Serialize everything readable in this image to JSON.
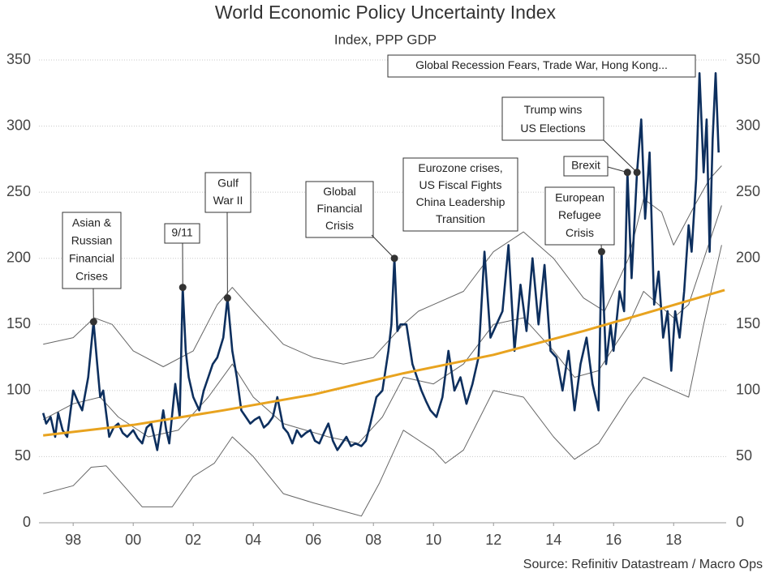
{
  "chart_data": {
    "type": "line",
    "title": "World Economic Policy Uncertainty Index",
    "subtitle": "Index, PPP GDP",
    "source": "Source: Refinitiv Datastream / Macro Ops",
    "xlim": [
      1996.86,
      2019.75
    ],
    "xticks": [
      {
        "value": 1998,
        "label": "98"
      },
      {
        "value": 2000,
        "label": "00"
      },
      {
        "value": 2002,
        "label": "02"
      },
      {
        "value": 2004,
        "label": "04"
      },
      {
        "value": 2006,
        "label": "06"
      },
      {
        "value": 2008,
        "label": "08"
      },
      {
        "value": 2010,
        "label": "10"
      },
      {
        "value": 2012,
        "label": "12"
      },
      {
        "value": 2014,
        "label": "14"
      },
      {
        "value": 2016,
        "label": "16"
      },
      {
        "value": 2018,
        "label": "18"
      }
    ],
    "ylim": [
      0,
      350
    ],
    "yticks": [
      0,
      50,
      100,
      150,
      200,
      250,
      300,
      350
    ],
    "grid": true,
    "series": [
      {
        "color": "#666666",
        "width": 1,
        "x": [
          1997,
          1998,
          1998.6,
          1999.1,
          1999.8,
          2000.3,
          2001.3,
          2002,
          2002.7,
          2003.3,
          2004,
          2005,
          2006,
          2007.6,
          2008.2,
          2009,
          2010,
          2010.4,
          2011,
          2012,
          2013,
          2014,
          2014.7,
          2015.5,
          2016.5,
          2017,
          2018,
          2018.5,
          2019,
          2019.6
        ],
        "values": [
          22,
          28,
          42,
          43,
          25,
          12,
          12,
          35,
          45,
          65,
          50,
          22,
          15,
          5,
          30,
          70,
          55,
          45,
          55,
          100,
          95,
          65,
          48,
          60,
          95,
          110,
          100,
          95,
          150,
          210
        ]
      },
      {
        "color": "#666666",
        "width": 1,
        "x": [
          1997,
          1998,
          1998.9,
          1999.5,
          2000.5,
          2001.5,
          2002.5,
          2003.3,
          2004,
          2005,
          2006.5,
          2007.5,
          2008.3,
          2009,
          2010,
          2011,
          2012,
          2013,
          2014,
          2014.7,
          2015.5,
          2016.5,
          2017,
          2018,
          2018.5,
          2019.6
        ],
        "values": [
          78,
          90,
          95,
          80,
          65,
          70,
          95,
          120,
          95,
          75,
          65,
          60,
          80,
          110,
          105,
          120,
          150,
          155,
          130,
          110,
          115,
          150,
          175,
          155,
          165,
          240
        ]
      },
      {
        "color": "#666666",
        "width": 1,
        "x": [
          1997,
          1998,
          1998.7,
          1999.3,
          2000,
          2001,
          2002,
          2002.8,
          2003.3,
          2004,
          2005,
          2006,
          2007,
          2008,
          2009,
          2009.5,
          2010,
          2011,
          2012,
          2013,
          2014,
          2015,
          2015.7,
          2016.5,
          2017,
          2017.6,
          2018,
          2018.7,
          2019.2,
          2019.6
        ],
        "values": [
          135,
          140,
          155,
          150,
          130,
          118,
          130,
          165,
          178,
          160,
          135,
          125,
          120,
          125,
          150,
          160,
          165,
          175,
          205,
          220,
          200,
          170,
          160,
          200,
          245,
          235,
          210,
          240,
          260,
          270
        ]
      },
      {
        "color": "#0d2f5e",
        "width": 2.6,
        "x": [
          1997,
          1997.1,
          1997.25,
          1997.4,
          1997.5,
          1997.65,
          1997.8,
          1998,
          1998.15,
          1998.3,
          1998.5,
          1998.68,
          1998.8,
          1998.9,
          1999,
          1999.2,
          1999.35,
          1999.5,
          1999.65,
          1999.8,
          2000,
          2000.15,
          2000.3,
          2000.45,
          2000.6,
          2000.8,
          2001,
          2001.1,
          2001.2,
          2001.4,
          2001.55,
          2001.65,
          2001.75,
          2001.85,
          2002,
          2002.2,
          2002.35,
          2002.5,
          2002.65,
          2002.8,
          2003,
          2003.14,
          2003.3,
          2003.45,
          2003.6,
          2003.75,
          2003.9,
          2004.05,
          2004.2,
          2004.35,
          2004.5,
          2004.65,
          2004.8,
          2005,
          2005.15,
          2005.3,
          2005.45,
          2005.6,
          2005.75,
          2005.9,
          2006.05,
          2006.2,
          2006.35,
          2006.5,
          2006.65,
          2006.8,
          2006.95,
          2007.1,
          2007.25,
          2007.4,
          2007.6,
          2007.75,
          2007.9,
          2008.1,
          2008.3,
          2008.5,
          2008.6,
          2008.7,
          2008.8,
          2008.9,
          2009.1,
          2009.3,
          2009.45,
          2009.6,
          2009.75,
          2009.9,
          2010.1,
          2010.3,
          2010.5,
          2010.7,
          2010.9,
          2011.1,
          2011.3,
          2011.5,
          2011.7,
          2011.9,
          2012.1,
          2012.3,
          2012.5,
          2012.7,
          2012.9,
          2013.1,
          2013.3,
          2013.5,
          2013.7,
          2013.9,
          2014.1,
          2014.3,
          2014.5,
          2014.7,
          2014.9,
          2015.1,
          2015.3,
          2015.5,
          2015.6,
          2015.75,
          2015.9,
          2016,
          2016.2,
          2016.35,
          2016.46,
          2016.6,
          2016.78,
          2016.92,
          2017.05,
          2017.2,
          2017.35,
          2017.5,
          2017.65,
          2017.8,
          2017.92,
          2018.05,
          2018.2,
          2018.35,
          2018.5,
          2018.6,
          2018.75,
          2018.86,
          2019,
          2019.1,
          2019.2,
          2019.3,
          2019.4,
          2019.5
        ],
        "values": [
          83,
          75,
          80,
          65,
          83,
          70,
          65,
          100,
          92,
          85,
          110,
          152,
          120,
          95,
          100,
          65,
          72,
          75,
          68,
          65,
          70,
          64,
          60,
          72,
          75,
          55,
          85,
          70,
          60,
          105,
          80,
          178,
          130,
          110,
          95,
          85,
          100,
          110,
          120,
          125,
          140,
          170,
          130,
          110,
          85,
          80,
          75,
          78,
          80,
          72,
          75,
          80,
          95,
          72,
          68,
          60,
          70,
          65,
          68,
          70,
          62,
          60,
          68,
          75,
          62,
          55,
          60,
          65,
          58,
          60,
          58,
          62,
          75,
          95,
          100,
          130,
          150,
          200,
          145,
          150,
          150,
          120,
          110,
          100,
          92,
          85,
          80,
          95,
          130,
          100,
          110,
          90,
          105,
          125,
          205,
          140,
          150,
          160,
          210,
          130,
          180,
          145,
          200,
          150,
          195,
          130,
          125,
          100,
          130,
          85,
          120,
          140,
          105,
          85,
          205,
          120,
          150,
          130,
          175,
          160,
          265,
          185,
          265,
          305,
          230,
          280,
          165,
          190,
          140,
          160,
          115,
          160,
          140,
          175,
          225,
          205,
          260,
          340,
          265,
          305,
          205,
          290,
          340,
          280
        ]
      },
      {
        "color": "#e8a31f",
        "width": 3,
        "x": [
          1997,
          2000,
          2003,
          2006,
          2009,
          2012,
          2015,
          2017,
          2019.7
        ],
        "values": [
          66,
          74,
          85,
          97,
          113,
          127,
          145,
          158,
          176
        ]
      }
    ],
    "annotations": [
      {
        "lines": [
          "Asian &",
          "Russian",
          "Financial",
          "Crises"
        ],
        "x": 1998.68,
        "y": 152
      },
      {
        "lines": [
          "9/11"
        ],
        "x": 2001.65,
        "y": 178
      },
      {
        "lines": [
          "Gulf",
          "War II"
        ],
        "x": 2003.14,
        "y": 170
      },
      {
        "lines": [
          "Global",
          "Financial",
          "Crisis"
        ],
        "x": 2008.7,
        "y": 200
      },
      {
        "lines": [
          "Eurozone crises,",
          "US Fiscal Fights",
          "China Leadership",
          "Transition"
        ]
      },
      {
        "lines": [
          "European",
          "Refugee",
          "Crisis"
        ],
        "x": 2015.6,
        "y": 205
      },
      {
        "lines": [
          "Brexit"
        ],
        "x": 2016.46,
        "y": 265
      },
      {
        "lines": [
          "Trump wins",
          "US Elections"
        ],
        "x": 2016.78,
        "y": 265
      },
      {
        "lines": [
          "Global Recession Fears, Trade War, Hong Kong..."
        ]
      }
    ]
  }
}
